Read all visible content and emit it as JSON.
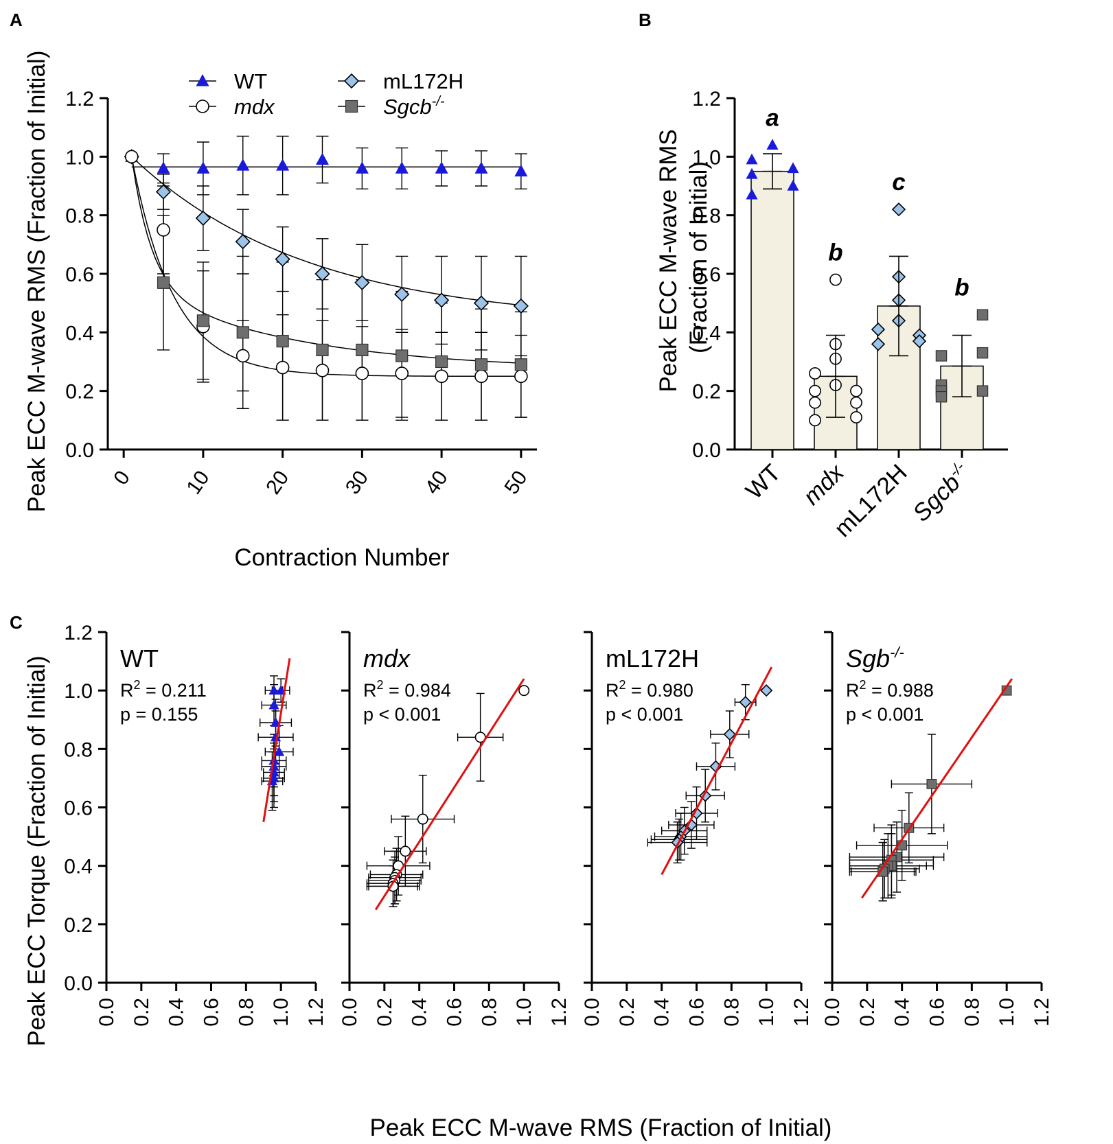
{
  "figure": {
    "panel_labels": [
      "A",
      "B",
      "C"
    ]
  },
  "colors": {
    "wt": "#1a1adb",
    "mdx": "#ffffff",
    "ml172h": "#9cc3ea",
    "sgcb": "#6e6e6e",
    "bar_fill": "#f4f0e1",
    "fit_line": "#e01010"
  },
  "chart_data": [
    {
      "panel": "A",
      "type": "line",
      "xlabel": "Contraction Number",
      "ylabel": "Peak ECC M-wave RMS (Fraction of Initial)",
      "xlim": [
        -2,
        52
      ],
      "ylim": [
        0,
        1.2
      ],
      "xticks": [
        "0",
        "10",
        "20",
        "30",
        "40",
        "50"
      ],
      "yticks": [
        "0.0",
        "0.2",
        "0.4",
        "0.6",
        "0.8",
        "1.0",
        "1.2"
      ],
      "legend": [
        {
          "key": "wt",
          "label": "WT",
          "marker": "triangle",
          "italic": false
        },
        {
          "key": "mdx",
          "label": "mdx",
          "marker": "circle",
          "italic": true
        },
        {
          "key": "ml172h",
          "label": "mL172H",
          "marker": "diamond",
          "italic": false
        },
        {
          "key": "sgcb",
          "label": "Sgcb",
          "sup": "-/-",
          "marker": "square",
          "italic": true
        }
      ],
      "series": [
        {
          "key": "wt",
          "name": "WT",
          "marker": "triangle",
          "x": [
            1,
            5,
            10,
            15,
            20,
            25,
            30,
            35,
            40,
            45,
            50
          ],
          "y": [
            1.0,
            0.96,
            0.96,
            0.97,
            0.97,
            0.99,
            0.96,
            0.96,
            0.96,
            0.96,
            0.95
          ],
          "err": [
            0,
            0.05,
            0.09,
            0.1,
            0.1,
            0.08,
            0.07,
            0.07,
            0.06,
            0.06,
            0.06
          ],
          "fit": {
            "type": "constant",
            "value": 0.965
          }
        },
        {
          "key": "ml172h",
          "name": "mL172H",
          "marker": "diamond",
          "x": [
            1,
            5,
            10,
            15,
            20,
            25,
            30,
            35,
            40,
            45,
            50
          ],
          "y": [
            1.0,
            0.88,
            0.79,
            0.71,
            0.65,
            0.6,
            0.57,
            0.53,
            0.51,
            0.5,
            0.49
          ],
          "err": [
            0,
            0.06,
            0.11,
            0.11,
            0.11,
            0.12,
            0.13,
            0.13,
            0.15,
            0.16,
            0.17
          ],
          "fit": {
            "type": "exp",
            "y0": 1.0,
            "plateau": 0.43,
            "k": 0.045
          }
        },
        {
          "key": "mdx",
          "name": "mdx",
          "marker": "circle",
          "x": [
            1,
            5,
            10,
            15,
            20,
            25,
            30,
            35,
            40,
            45,
            50
          ],
          "y": [
            1.0,
            0.75,
            0.42,
            0.32,
            0.28,
            0.27,
            0.26,
            0.26,
            0.25,
            0.25,
            0.25
          ],
          "err": [
            0,
            0.15,
            0.19,
            0.12,
            0.18,
            0.17,
            0.16,
            0.15,
            0.15,
            0.15,
            0.14
          ],
          "fit": {
            "type": "exp",
            "y0": 1.0,
            "plateau": 0.25,
            "k": 0.19
          }
        },
        {
          "key": "sgcb",
          "name": "Sgcb-/-",
          "marker": "square",
          "x": [
            5,
            10,
            15,
            20,
            25,
            30,
            35,
            40,
            45,
            50
          ],
          "y": [
            0.57,
            0.44,
            0.4,
            0.37,
            0.34,
            0.34,
            0.32,
            0.3,
            0.29,
            0.29
          ],
          "err": [
            0.23,
            0.2,
            0.26,
            0.27,
            0.24,
            0.24,
            0.22,
            0.2,
            0.19,
            0.18
          ],
          "fit": {
            "type": "two-phase",
            "y0": 1.0,
            "plateau": 0.27,
            "fast_amp": 0.44,
            "fast_k": 0.4,
            "slow_amp": 0.29,
            "slow_k": 0.05
          }
        }
      ]
    },
    {
      "panel": "B",
      "type": "bar",
      "ylabel_line1": "Peak ECC M-wave RMS",
      "ylabel_line2": "(Fraction of Initial)",
      "ylim": [
        0,
        1.2
      ],
      "yticks": [
        "0.0",
        "0.2",
        "0.4",
        "0.6",
        "0.8",
        "1.0",
        "1.2"
      ],
      "categories": [
        {
          "key": "wt",
          "label": "WT",
          "italic": false,
          "marker": "triangle",
          "mean": 0.95,
          "sd": 0.06,
          "letter": "a",
          "points": [
            [
              -0.28,
              0.99
            ],
            [
              -0.28,
              0.94
            ],
            [
              -0.28,
              0.87
            ],
            [
              0.0,
              1.04
            ],
            [
              0.28,
              0.96
            ],
            [
              0.28,
              0.9
            ]
          ]
        },
        {
          "key": "mdx",
          "label": "mdx",
          "italic": true,
          "marker": "circle",
          "mean": 0.25,
          "sd": 0.14,
          "letter": "b",
          "points": [
            [
              -0.28,
              0.26
            ],
            [
              -0.28,
              0.2
            ],
            [
              -0.28,
              0.16
            ],
            [
              -0.28,
              0.1
            ],
            [
              0.0,
              0.58
            ],
            [
              0.0,
              0.36
            ],
            [
              0.0,
              0.31
            ],
            [
              0.0,
              0.22
            ],
            [
              0.28,
              0.2
            ],
            [
              0.28,
              0.16
            ],
            [
              0.28,
              0.11
            ]
          ]
        },
        {
          "key": "ml172h",
          "label": "mL172H",
          "italic": false,
          "marker": "diamond",
          "mean": 0.49,
          "sd": 0.17,
          "letter": "c",
          "points": [
            [
              -0.28,
              0.41
            ],
            [
              -0.28,
              0.36
            ],
            [
              0.0,
              0.82
            ],
            [
              0.0,
              0.59
            ],
            [
              0.0,
              0.51
            ],
            [
              0.0,
              0.44
            ],
            [
              0.28,
              0.39
            ],
            [
              0.28,
              0.37
            ]
          ]
        },
        {
          "key": "sgcb",
          "label": "Sgcb",
          "sup": "-/-",
          "italic": true,
          "marker": "square",
          "mean": 0.285,
          "sd": 0.105,
          "letter": "b",
          "points": [
            [
              -0.28,
              0.32
            ],
            [
              -0.28,
              0.22
            ],
            [
              -0.28,
              0.2
            ],
            [
              -0.28,
              0.18
            ],
            [
              0.28,
              0.46
            ],
            [
              0.28,
              0.33
            ],
            [
              0.28,
              0.2
            ]
          ]
        }
      ]
    },
    {
      "panel": "C",
      "type": "scatter",
      "ylabel": "Peak ECC Torque (Fraction of Initial)",
      "xlabel": "Peak ECC M-wave RMS (Fraction of Initial)",
      "xlim": [
        0,
        1.2
      ],
      "ylim": [
        0,
        1.2
      ],
      "ticks": [
        "0.0",
        "0.2",
        "0.4",
        "0.6",
        "0.8",
        "1.0",
        "1.2"
      ],
      "subplots": [
        {
          "key": "wt",
          "title": "WT",
          "italic": false,
          "marker": "triangle",
          "r2_label": "R",
          "r2_value": " = 0.211",
          "p_label": "p = 0.155",
          "fit": {
            "x1": 0.9,
            "y1": 0.55,
            "x2": 1.05,
            "y2": 1.11
          },
          "points": [
            [
              1.0,
              1.0,
              0.05,
              0.04
            ],
            [
              0.96,
              1.0,
              0.05,
              0.05
            ],
            [
              0.96,
              0.95,
              0.07,
              0.07
            ],
            [
              0.97,
              0.89,
              0.09,
              0.08
            ],
            [
              0.97,
              0.84,
              0.1,
              0.09
            ],
            [
              0.99,
              0.79,
              0.08,
              0.09
            ],
            [
              0.96,
              0.76,
              0.07,
              0.09
            ],
            [
              0.96,
              0.74,
              0.07,
              0.1
            ],
            [
              0.96,
              0.72,
              0.06,
              0.1
            ],
            [
              0.96,
              0.7,
              0.06,
              0.1
            ],
            [
              0.95,
              0.69,
              0.06,
              0.1
            ]
          ]
        },
        {
          "key": "mdx",
          "title": "mdx",
          "italic": true,
          "marker": "circle",
          "r2_label": "R",
          "r2_value": " = 0.984",
          "p_label": "p < 0.001",
          "fit": {
            "x1": 0.15,
            "y1": 0.25,
            "x2": 1.0,
            "y2": 1.04
          },
          "points": [
            [
              1.0,
              1.0,
              0,
              0
            ],
            [
              0.75,
              0.84,
              0.13,
              0.15
            ],
            [
              0.42,
              0.56,
              0.18,
              0.15
            ],
            [
              0.32,
              0.45,
              0.12,
              0.12
            ],
            [
              0.28,
              0.4,
              0.18,
              0.1
            ],
            [
              0.27,
              0.37,
              0.15,
              0.09
            ],
            [
              0.26,
              0.36,
              0.15,
              0.09
            ],
            [
              0.26,
              0.35,
              0.15,
              0.08
            ],
            [
              0.25,
              0.34,
              0.15,
              0.08
            ],
            [
              0.25,
              0.33,
              0.15,
              0.07
            ],
            [
              0.25,
              0.33,
              0.14,
              0.07
            ]
          ]
        },
        {
          "key": "ml172h",
          "title": "mL172H",
          "italic": false,
          "marker": "diamond",
          "r2_label": "R",
          "r2_value": " = 0.980",
          "p_label": "p < 0.001",
          "fit": {
            "x1": 0.4,
            "y1": 0.37,
            "x2": 1.03,
            "y2": 1.08
          },
          "points": [
            [
              1.0,
              1.0,
              0,
              0
            ],
            [
              0.88,
              0.96,
              0.06,
              0.06
            ],
            [
              0.79,
              0.85,
              0.11,
              0.08
            ],
            [
              0.71,
              0.74,
              0.11,
              0.08
            ],
            [
              0.65,
              0.64,
              0.11,
              0.09
            ],
            [
              0.6,
              0.58,
              0.12,
              0.09
            ],
            [
              0.57,
              0.54,
              0.13,
              0.08
            ],
            [
              0.53,
              0.52,
              0.13,
              0.08
            ],
            [
              0.51,
              0.5,
              0.15,
              0.08
            ],
            [
              0.5,
              0.49,
              0.16,
              0.07
            ],
            [
              0.49,
              0.48,
              0.17,
              0.07
            ]
          ]
        },
        {
          "key": "sgcb",
          "title": "Sgb",
          "sup": "-/-",
          "italic": true,
          "marker": "square",
          "r2_label": "R",
          "r2_value": " = 0.988",
          "p_label": "p < 0.001",
          "fit": {
            "x1": 0.17,
            "y1": 0.29,
            "x2": 1.03,
            "y2": 1.04
          },
          "points": [
            [
              1.0,
              1.0,
              0,
              0
            ],
            [
              0.57,
              0.68,
              0.23,
              0.17
            ],
            [
              0.44,
              0.53,
              0.2,
              0.12
            ],
            [
              0.4,
              0.47,
              0.26,
              0.12
            ],
            [
              0.37,
              0.43,
              0.27,
              0.12
            ],
            [
              0.34,
              0.42,
              0.24,
              0.12
            ],
            [
              0.34,
              0.4,
              0.24,
              0.11
            ],
            [
              0.32,
              0.4,
              0.22,
              0.11
            ],
            [
              0.3,
              0.39,
              0.2,
              0.1
            ],
            [
              0.29,
              0.38,
              0.19,
              0.1
            ],
            [
              0.29,
              0.38,
              0.18,
              0.1
            ]
          ]
        }
      ]
    }
  ]
}
